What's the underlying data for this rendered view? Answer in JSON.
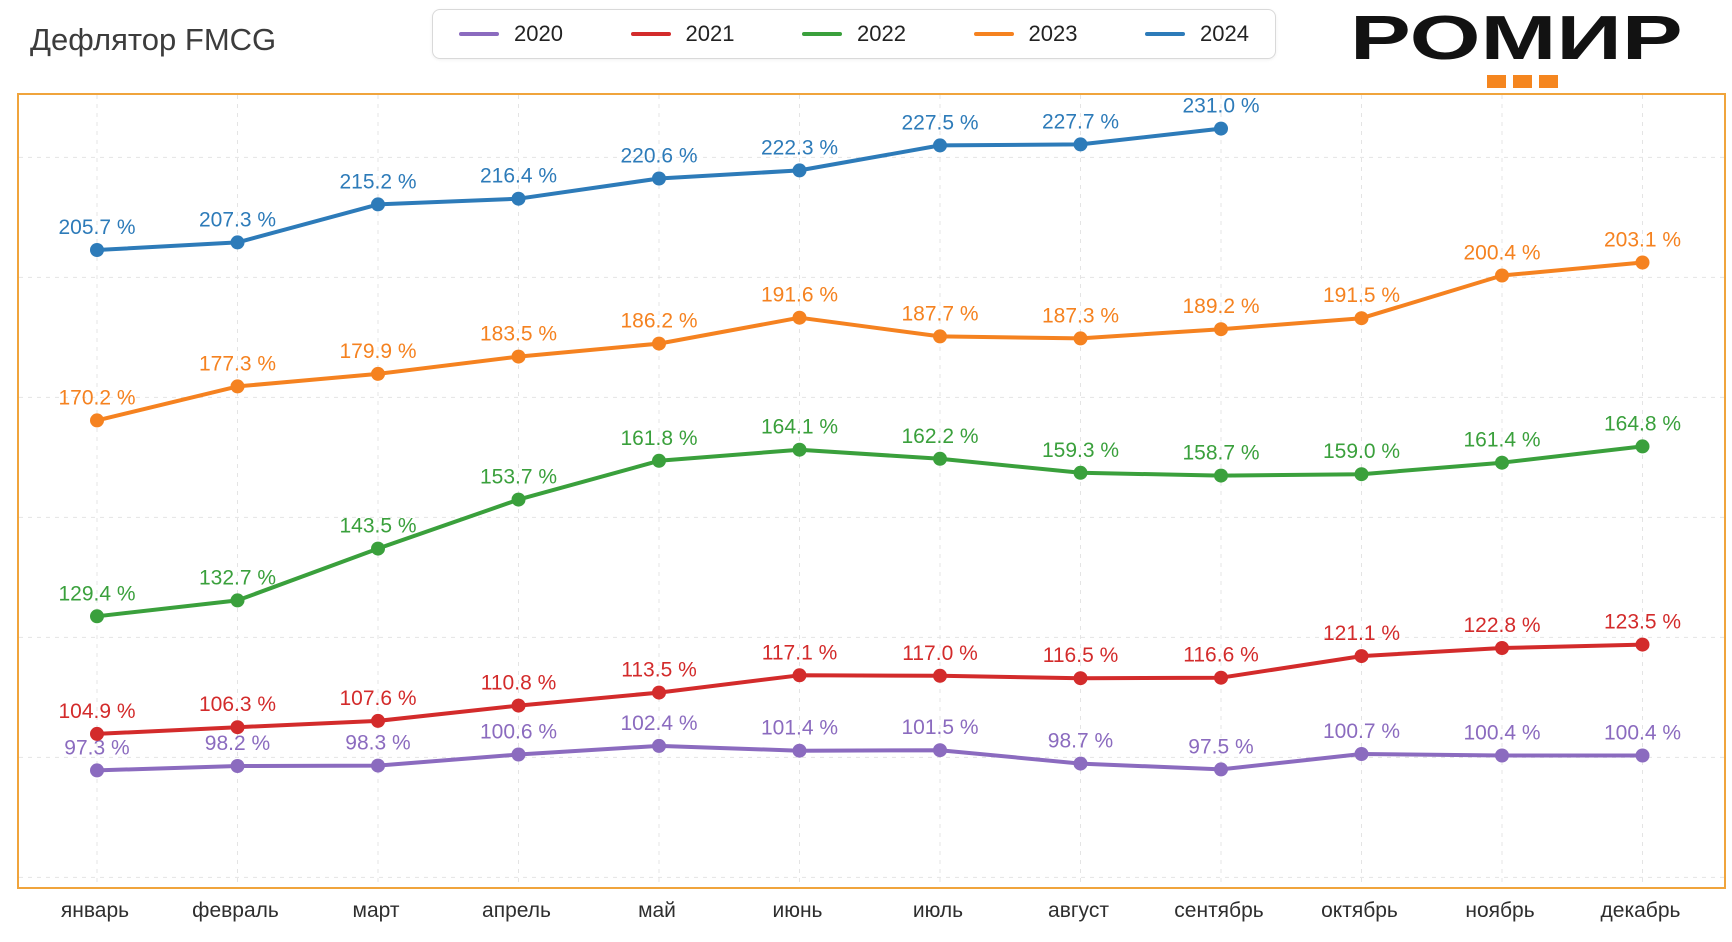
{
  "header": {
    "title": "Дефлятор FMCG",
    "logo_text": "РОМИР"
  },
  "colors": {
    "plot_border": "#f0a43c",
    "grid": "#e4e4e4",
    "logo_accent": "#f5861f",
    "title_text": "#3c3c3c"
  },
  "chart_data": {
    "type": "line",
    "title": "Дефлятор FMCG",
    "categories": [
      "январь",
      "февраль",
      "март",
      "апрель",
      "май",
      "июнь",
      "июль",
      "август",
      "сентябрь",
      "октябрь",
      "ноябрь",
      "декабрь"
    ],
    "series": [
      {
        "name": "2020",
        "color": "#8b6bbf",
        "values": [
          97.3,
          98.2,
          98.3,
          100.6,
          102.4,
          101.4,
          101.5,
          98.7,
          97.5,
          100.7,
          100.4,
          100.4
        ]
      },
      {
        "name": "2021",
        "color": "#d32b2b",
        "values": [
          104.9,
          106.3,
          107.6,
          110.8,
          113.5,
          117.1,
          117.0,
          116.5,
          116.6,
          121.1,
          122.8,
          123.5
        ]
      },
      {
        "name": "2022",
        "color": "#3aa03c",
        "values": [
          129.4,
          132.7,
          143.5,
          153.7,
          161.8,
          164.1,
          162.2,
          159.3,
          158.7,
          159.0,
          161.4,
          164.8
        ]
      },
      {
        "name": "2023",
        "color": "#f58220",
        "values": [
          170.2,
          177.3,
          179.9,
          183.5,
          186.2,
          191.6,
          187.7,
          187.3,
          189.2,
          191.5,
          200.4,
          203.1
        ]
      },
      {
        "name": "2024",
        "color": "#2d7bb9",
        "values": [
          205.7,
          207.3,
          215.2,
          216.4,
          220.6,
          222.3,
          227.5,
          227.7,
          231.0
        ]
      }
    ],
    "value_suffix": " %",
    "ylim": [
      73,
      238
    ],
    "grid": "dashed",
    "legend_position": "top",
    "data_labels": true
  }
}
